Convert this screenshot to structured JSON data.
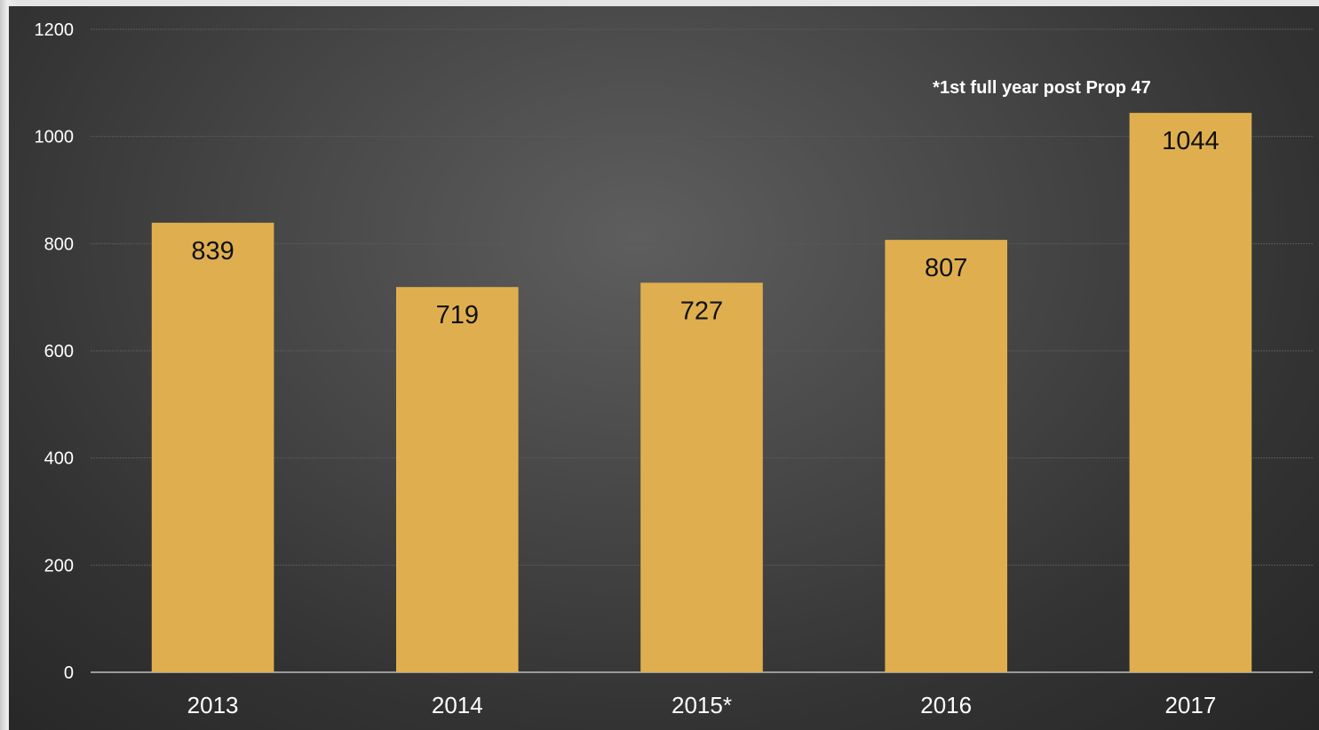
{
  "chart_data": {
    "type": "bar",
    "categories": [
      "2013",
      "2014",
      "2015*",
      "2016",
      "2017"
    ],
    "values": [
      839,
      719,
      727,
      807,
      1044
    ],
    "data_labels": [
      "839",
      "719",
      "727",
      "807",
      "1044"
    ],
    "y_ticks": [
      "0",
      "200",
      "400",
      "600",
      "800",
      "1000",
      "1200"
    ],
    "ylim": [
      0,
      1200
    ],
    "grid": true,
    "annotation": "*1st full year post Prop 47",
    "colors": {
      "bar": "#dfaf4f",
      "text": "#ffffff",
      "data_label": "#111111",
      "grid": "#5a5a5a"
    }
  }
}
